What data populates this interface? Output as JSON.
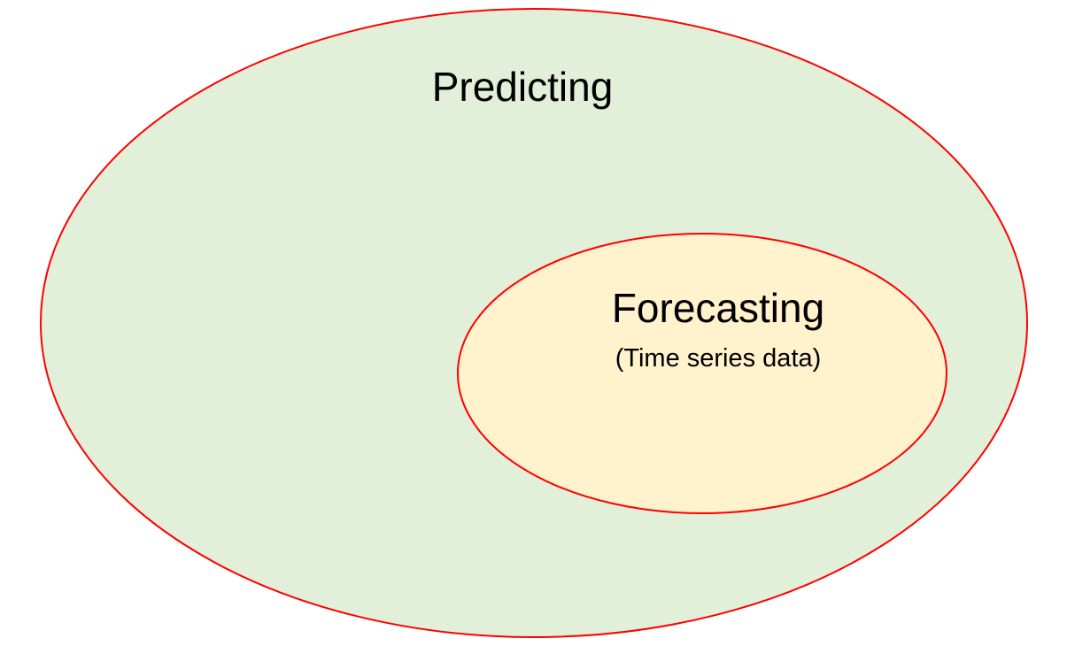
{
  "diagram": {
    "outer": {
      "label": "Predicting",
      "fill": "#e2efd9",
      "stroke": "#ff0000"
    },
    "inner": {
      "label": "Forecasting",
      "sublabel": "(Time series data)",
      "fill": "#fff2cc",
      "stroke": "#ff0000"
    }
  }
}
